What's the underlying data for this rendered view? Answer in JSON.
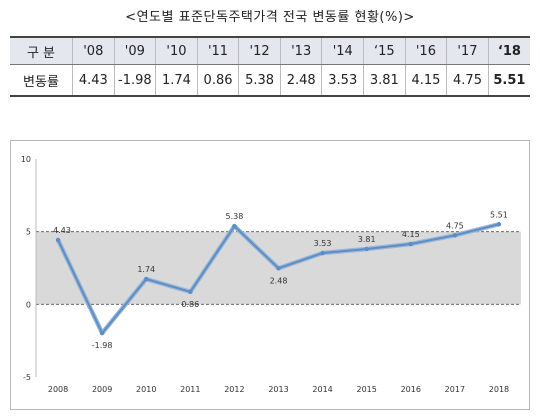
{
  "title": "<연도별 표준단독주택가격 전국 변동률 현황(%)>",
  "table": {
    "header_label": "구  분",
    "row_label": "변동률",
    "years": [
      "'08",
      "'09",
      "'10",
      "'11",
      "'12",
      "'13",
      "'14",
      "‘15",
      "'16",
      "'17",
      "‘18"
    ],
    "values": [
      "4.43",
      "-1.98",
      "1.74",
      "0.86",
      "5.38",
      "2.48",
      "3.53",
      "3.81",
      "4.15",
      "4.75",
      "5.51"
    ]
  },
  "chart_data": {
    "type": "line",
    "categories": [
      "2008",
      "2009",
      "2010",
      "2011",
      "2012",
      "2013",
      "2014",
      "2015",
      "2016",
      "2017",
      "2018"
    ],
    "series": [
      {
        "values": [
          4.43,
          -1.98,
          1.74,
          0.86,
          5.38,
          2.48,
          3.53,
          3.81,
          4.15,
          4.75,
          5.51
        ]
      }
    ],
    "data_labels": [
      "4.43",
      "-1.98",
      "1.74",
      "0.86",
      "5.38",
      "2.48",
      "3.53",
      "3.81",
      "4.15",
      "4.75",
      "5.51"
    ],
    "yticks": [
      "10",
      "5",
      "0",
      "-5"
    ],
    "ylim": [
      -5,
      10
    ],
    "shaded_band": [
      0,
      5
    ],
    "grid": false,
    "line_color": "#5b8ec9",
    "band_color": "#d9d9d9"
  }
}
